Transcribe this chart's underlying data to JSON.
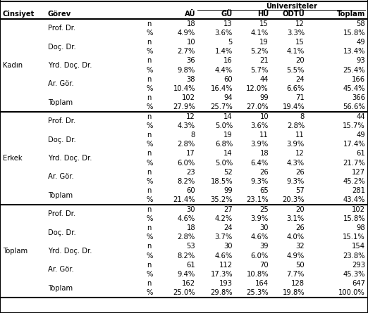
{
  "sections": [
    {
      "cinsiyet": "Kadın",
      "rows": [
        {
          "gorev": "Prof. Dr.",
          "n": [
            "18",
            "13",
            "15",
            "12",
            "58"
          ],
          "pct": [
            "4.9%",
            "3.6%",
            "4.1%",
            "3.3%",
            "15.8%"
          ]
        },
        {
          "gorev": "Doç. Dr.",
          "n": [
            "10",
            "5",
            "19",
            "15",
            "49"
          ],
          "pct": [
            "2.7%",
            "1.4%",
            "5.2%",
            "4.1%",
            "13.4%"
          ]
        },
        {
          "gorev": "Yrd. Doç. Dr.",
          "n": [
            "36",
            "16",
            "21",
            "20",
            "93"
          ],
          "pct": [
            "9.8%",
            "4.4%",
            "5.7%",
            "5.5%",
            "25.4%"
          ]
        },
        {
          "gorev": "Ar. Gör.",
          "n": [
            "38",
            "60",
            "44",
            "24",
            "166"
          ],
          "pct": [
            "10.4%",
            "16.4%",
            "12.0%",
            "6.6%",
            "45.4%"
          ]
        },
        {
          "gorev": "Toplam",
          "n": [
            "102",
            "94",
            "99",
            "71",
            "366"
          ],
          "pct": [
            "27.9%",
            "25.7%",
            "27.0%",
            "19.4%",
            "56.6%"
          ]
        }
      ]
    },
    {
      "cinsiyet": "Erkek",
      "rows": [
        {
          "gorev": "Prof. Dr.",
          "n": [
            "12",
            "14",
            "10",
            "8",
            "44"
          ],
          "pct": [
            "4.3%",
            "5.0%",
            "3.6%",
            "2.8%",
            "15.7%"
          ]
        },
        {
          "gorev": "Doç. Dr.",
          "n": [
            "8",
            "19",
            "11",
            "11",
            "49"
          ],
          "pct": [
            "2.8%",
            "6.8%",
            "3.9%",
            "3.9%",
            "17.4%"
          ]
        },
        {
          "gorev": "Yrd. Doç. Dr.",
          "n": [
            "17",
            "14",
            "18",
            "12",
            "61"
          ],
          "pct": [
            "6.0%",
            "5.0%",
            "6.4%",
            "4.3%",
            "21.7%"
          ]
        },
        {
          "gorev": "Ar. Gör.",
          "n": [
            "23",
            "52",
            "26",
            "26",
            "127"
          ],
          "pct": [
            "8.2%",
            "18.5%",
            "9.3%",
            "9.3%",
            "45.2%"
          ]
        },
        {
          "gorev": "Toplam",
          "n": [
            "60",
            "99",
            "65",
            "57",
            "281"
          ],
          "pct": [
            "21.4%",
            "35.2%",
            "23.1%",
            "20.3%",
            "43.4%"
          ]
        }
      ]
    },
    {
      "cinsiyet": "Toplam",
      "rows": [
        {
          "gorev": "Prof. Dr.",
          "n": [
            "30",
            "27",
            "25",
            "20",
            "102"
          ],
          "pct": [
            "4.6%",
            "4.2%",
            "3.9%",
            "3.1%",
            "15.8%"
          ]
        },
        {
          "gorev": "Doç. Dr.",
          "n": [
            "18",
            "24",
            "30",
            "26",
            "98"
          ],
          "pct": [
            "2.8%",
            "3.7%",
            "4.6%",
            "4.0%",
            "15.1%"
          ]
        },
        {
          "gorev": "Yrd. Doç. Dr.",
          "n": [
            "53",
            "30",
            "39",
            "32",
            "154"
          ],
          "pct": [
            "8.2%",
            "4.6%",
            "6.0%",
            "4.9%",
            "23.8%"
          ]
        },
        {
          "gorev": "Ar. Gör.",
          "n": [
            "61",
            "112",
            "70",
            "50",
            "293"
          ],
          "pct": [
            "9.4%",
            "17.3%",
            "10.8%",
            "7.7%",
            "45.3%"
          ]
        },
        {
          "gorev": "Toplam",
          "n": [
            "162",
            "193",
            "164",
            "128",
            "647"
          ],
          "pct": [
            "25.0%",
            "29.8%",
            "25.3%",
            "19.8%",
            "100.0%"
          ]
        }
      ]
    }
  ],
  "col_headers": [
    "AÜ",
    "GÜ",
    "HÜ",
    "ODTÜ",
    "Toplam"
  ],
  "font_size": 7.2,
  "font_family": "DejaVu Sans"
}
